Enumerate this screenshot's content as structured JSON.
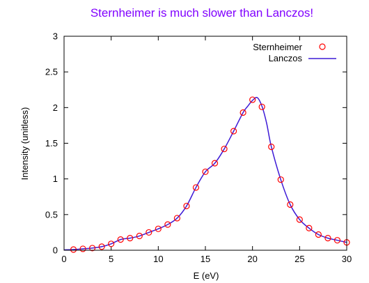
{
  "chart_data": {
    "type": "line",
    "title": "Sternheimer is much slower than Lanczos!",
    "xlabel": "E (eV)",
    "ylabel": "Intensity (unitless)",
    "xlim": [
      0,
      30
    ],
    "ylim": [
      0,
      3
    ],
    "xticks": [
      0,
      5,
      10,
      15,
      20,
      25,
      30
    ],
    "yticks": [
      0,
      0.5,
      1,
      1.5,
      2,
      2.5,
      3
    ],
    "xtick_labels": [
      "0",
      "5",
      "10",
      "15",
      "20",
      "25",
      "30"
    ],
    "ytick_labels": [
      "0",
      "0.5",
      "1",
      "1.5",
      "2",
      "2.5",
      "3"
    ],
    "grid": false,
    "legend_position": "top-right",
    "colors": {
      "title": "#8000ff",
      "sternheimer": "#ff0000",
      "lanczos": "#3d1ad6",
      "axis": "#000000"
    },
    "series": [
      {
        "name": "Sternheimer",
        "style": "points",
        "x": [
          1,
          2,
          3,
          4,
          5,
          6,
          7,
          8,
          9,
          10,
          11,
          12,
          13,
          14,
          15,
          16,
          17,
          18,
          19,
          20,
          21,
          22,
          23,
          24,
          25,
          26,
          27,
          28,
          29,
          30
        ],
        "y": [
          0.01,
          0.02,
          0.03,
          0.05,
          0.09,
          0.15,
          0.17,
          0.2,
          0.25,
          0.3,
          0.36,
          0.45,
          0.62,
          0.88,
          1.1,
          1.22,
          1.42,
          1.67,
          1.93,
          2.11,
          2.01,
          1.45,
          0.99,
          0.64,
          0.43,
          0.31,
          0.22,
          0.17,
          0.14,
          0.11
        ]
      },
      {
        "name": "Lanczos",
        "style": "line",
        "x": [
          0,
          1,
          2,
          3,
          4,
          5,
          6,
          7,
          8,
          9,
          10,
          11,
          12,
          13,
          14,
          15,
          16,
          17,
          18,
          19,
          19.5,
          20,
          20.5,
          21,
          21.5,
          22,
          23,
          24,
          25,
          26,
          27,
          28,
          29,
          30
        ],
        "y": [
          0.005,
          0.01,
          0.02,
          0.03,
          0.05,
          0.09,
          0.15,
          0.17,
          0.2,
          0.25,
          0.3,
          0.36,
          0.45,
          0.62,
          0.88,
          1.1,
          1.22,
          1.42,
          1.67,
          1.93,
          2.02,
          2.1,
          2.14,
          2.02,
          1.78,
          1.45,
          0.99,
          0.64,
          0.43,
          0.31,
          0.22,
          0.17,
          0.14,
          0.11
        ]
      }
    ]
  }
}
